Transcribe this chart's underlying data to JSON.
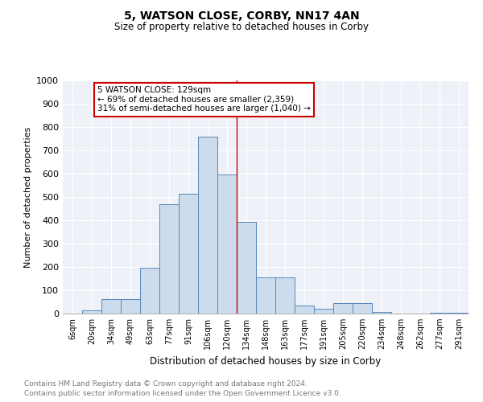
{
  "title": "5, WATSON CLOSE, CORBY, NN17 4AN",
  "subtitle": "Size of property relative to detached houses in Corby",
  "xlabel": "Distribution of detached houses by size in Corby",
  "ylabel": "Number of detached properties",
  "categories": [
    "6sqm",
    "20sqm",
    "34sqm",
    "49sqm",
    "63sqm",
    "77sqm",
    "91sqm",
    "106sqm",
    "120sqm",
    "134sqm",
    "148sqm",
    "163sqm",
    "177sqm",
    "191sqm",
    "205sqm",
    "220sqm",
    "234sqm",
    "248sqm",
    "262sqm",
    "277sqm",
    "291sqm"
  ],
  "values": [
    0,
    13,
    63,
    63,
    196,
    470,
    515,
    757,
    596,
    392,
    156,
    156,
    36,
    22,
    44,
    44,
    8,
    0,
    0,
    5,
    5
  ],
  "bar_color": "#ccdcec",
  "bar_edge_color": "#5588bb",
  "annotation_text": "5 WATSON CLOSE: 129sqm\n← 69% of detached houses are smaller (2,359)\n31% of semi-detached houses are larger (1,040) →",
  "footer_line1": "Contains HM Land Registry data © Crown copyright and database right 2024.",
  "footer_line2": "Contains public sector information licensed under the Open Government Licence v3.0.",
  "ylim": [
    0,
    1000
  ],
  "yticks": [
    0,
    100,
    200,
    300,
    400,
    500,
    600,
    700,
    800,
    900,
    1000
  ],
  "line_color": "#cc0000",
  "box_edge_color": "#cc0000",
  "bg_color": "#eef2f8"
}
